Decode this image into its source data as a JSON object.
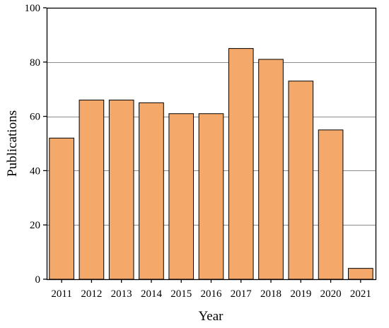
{
  "chart_data": {
    "type": "bar",
    "title": "",
    "xlabel": "Year",
    "ylabel": "Publications",
    "categories": [
      "2011",
      "2012",
      "2013",
      "2014",
      "2015",
      "2016",
      "2017",
      "2018",
      "2019",
      "2020",
      "2021"
    ],
    "values": [
      52,
      66,
      66,
      65,
      61,
      61,
      85,
      81,
      73,
      55,
      4
    ],
    "ylim": [
      0,
      100
    ],
    "yticks": [
      0,
      20,
      40,
      60,
      80,
      100
    ],
    "grid": "horizontal",
    "legend": "none",
    "colors": {
      "bar_fill": "#F4A86A",
      "bar_stroke": "#000000",
      "grid": "#8c8c8c",
      "axis": "#000000"
    }
  }
}
